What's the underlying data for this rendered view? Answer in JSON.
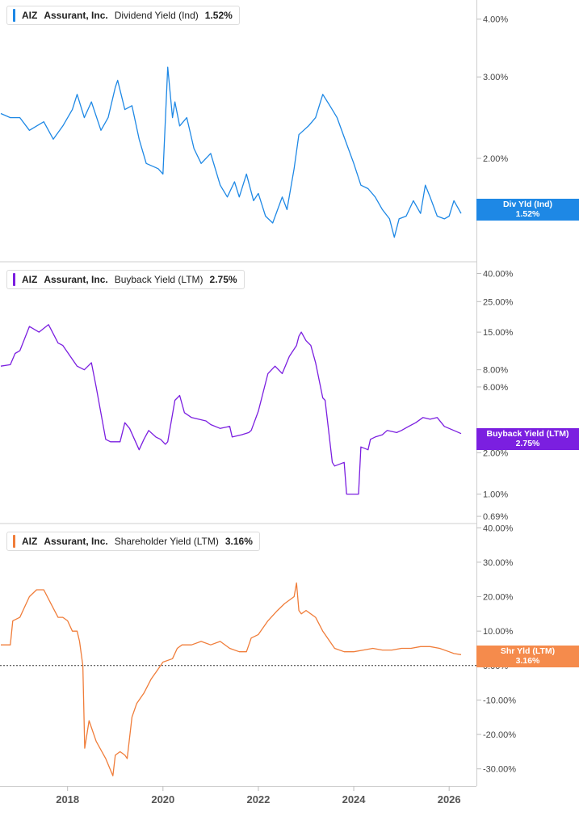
{
  "chart_data": [
    {
      "type": "line",
      "ticker": "AIZ",
      "company": "Assurant, Inc.",
      "metric": "Dividend Yield (Ind)",
      "latest": "1.52%",
      "flag_label": "Div Yld (Ind)",
      "flag_value": "1.52%",
      "color": "#1e88e5",
      "yscale": "log",
      "ylim": [
        1.2,
        4.4
      ],
      "ytick_labels": [
        "4.00%",
        "3.00%",
        "2.00%"
      ],
      "ytick_values": [
        4.0,
        3.0,
        2.0
      ],
      "series": [
        {
          "x": [
            2016.6,
            2016.8,
            2017.0,
            2017.2,
            2017.5,
            2017.7,
            2017.9,
            2018.1,
            2018.2,
            2018.35,
            2018.5,
            2018.7,
            2018.85,
            2019.0,
            2019.05,
            2019.2,
            2019.35,
            2019.5,
            2019.65,
            2019.8,
            2019.9,
            2020.0,
            2020.1,
            2020.2,
            2020.25,
            2020.35,
            2020.5,
            2020.65,
            2020.8,
            2021.0,
            2021.2,
            2021.35,
            2021.5,
            2021.6,
            2021.75,
            2021.9,
            2022.0,
            2022.15,
            2022.3,
            2022.5,
            2022.6,
            2022.75,
            2022.85,
            2022.95,
            2023.05,
            2023.2,
            2023.35,
            2023.5,
            2023.65,
            2023.85,
            2024.0,
            2024.15,
            2024.3,
            2024.45,
            2024.6,
            2024.75,
            2024.85,
            2024.95,
            2025.1,
            2025.25,
            2025.4,
            2025.5,
            2025.6,
            2025.75,
            2025.9,
            2026.0,
            2026.1,
            2026.25
          ],
          "y": [
            2.5,
            2.45,
            2.45,
            2.3,
            2.4,
            2.2,
            2.35,
            2.55,
            2.75,
            2.45,
            2.65,
            2.3,
            2.45,
            2.85,
            2.95,
            2.55,
            2.6,
            2.2,
            1.95,
            1.92,
            1.9,
            1.85,
            3.15,
            2.45,
            2.65,
            2.35,
            2.45,
            2.1,
            1.95,
            2.05,
            1.75,
            1.65,
            1.78,
            1.65,
            1.85,
            1.62,
            1.68,
            1.5,
            1.45,
            1.65,
            1.55,
            1.9,
            2.25,
            2.3,
            2.35,
            2.45,
            2.75,
            2.6,
            2.45,
            2.15,
            1.95,
            1.75,
            1.72,
            1.65,
            1.55,
            1.48,
            1.35,
            1.48,
            1.5,
            1.62,
            1.52,
            1.75,
            1.65,
            1.5,
            1.48,
            1.5,
            1.62,
            1.52
          ]
        }
      ]
    },
    {
      "type": "line",
      "ticker": "AIZ",
      "company": "Assurant, Inc.",
      "metric": "Buyback Yield (LTM)",
      "latest": "2.75%",
      "flag_label": "Buyback Yield (LTM)",
      "flag_value": "2.75%",
      "color": "#7b1fe0",
      "yscale": "log",
      "ylim": [
        0.62,
        48
      ],
      "ytick_labels": [
        "40.00%",
        "25.00%",
        "15.00%",
        "8.00%",
        "6.00%",
        "2.00%",
        "1.00%",
        "0.69%"
      ],
      "ytick_values": [
        40,
        25,
        15,
        8,
        6,
        2,
        1,
        0.69
      ],
      "series": [
        {
          "x": [
            2016.6,
            2016.8,
            2016.9,
            2017.0,
            2017.2,
            2017.4,
            2017.6,
            2017.8,
            2017.9,
            2018.2,
            2018.35,
            2018.5,
            2018.6,
            2018.8,
            2018.9,
            2019.1,
            2019.2,
            2019.3,
            2019.5,
            2019.6,
            2019.7,
            2019.85,
            2019.95,
            2020.05,
            2020.1,
            2020.25,
            2020.35,
            2020.45,
            2020.6,
            2020.75,
            2020.9,
            2021.0,
            2021.2,
            2021.4,
            2021.45,
            2021.65,
            2021.8,
            2021.85,
            2022.0,
            2022.2,
            2022.35,
            2022.5,
            2022.65,
            2022.8,
            2022.85,
            2022.9,
            2023.0,
            2023.1,
            2023.2,
            2023.35,
            2023.4,
            2023.55,
            2023.6,
            2023.8,
            2023.85,
            2024.1,
            2024.15,
            2024.3,
            2024.35,
            2024.45,
            2024.6,
            2024.7,
            2024.9,
            2025.0,
            2025.15,
            2025.3,
            2025.45,
            2025.6,
            2025.75,
            2025.9,
            2026.1,
            2026.25
          ],
          "y": [
            8.5,
            8.7,
            10.5,
            11,
            16.5,
            15,
            17,
            12.5,
            12,
            8.5,
            8,
            9,
            6,
            2.5,
            2.4,
            2.4,
            3.3,
            3,
            2.1,
            2.5,
            2.9,
            2.6,
            2.5,
            2.3,
            2.4,
            4.8,
            5.2,
            3.9,
            3.6,
            3.5,
            3.4,
            3.2,
            3.0,
            3.1,
            2.6,
            2.7,
            2.8,
            2.9,
            4.0,
            7.5,
            8.5,
            7.5,
            10,
            12,
            14,
            15,
            13,
            12,
            9,
            5,
            4.8,
            1.7,
            1.6,
            1.7,
            1.0,
            1.0,
            2.2,
            2.1,
            2.5,
            2.6,
            2.7,
            2.9,
            2.8,
            2.9,
            3.1,
            3.3,
            3.6,
            3.5,
            3.6,
            3.1,
            2.9,
            2.75
          ]
        }
      ]
    },
    {
      "type": "line",
      "ticker": "AIZ",
      "company": "Assurant, Inc.",
      "metric": "Shareholder Yield (LTM)",
      "latest": "3.16%",
      "flag_label": "Shr Yld (LTM)",
      "flag_value": "3.16%",
      "color": "#f07d3a",
      "yscale": "linear",
      "ylim": [
        -35,
        41
      ],
      "zero_line": true,
      "ytick_labels": [
        "40.00%",
        "30.00%",
        "20.00%",
        "10.00%",
        "0.00%",
        "-10.00%",
        "-20.00%",
        "-30.00%"
      ],
      "ytick_values": [
        40,
        30,
        20,
        10,
        0,
        -10,
        -20,
        -30
      ],
      "series": [
        {
          "x": [
            2016.6,
            2016.8,
            2016.85,
            2017.0,
            2017.2,
            2017.35,
            2017.5,
            2017.65,
            2017.8,
            2017.9,
            2018.0,
            2018.1,
            2018.2,
            2018.25,
            2018.32,
            2018.36,
            2018.45,
            2018.6,
            2018.8,
            2018.95,
            2019.0,
            2019.1,
            2019.2,
            2019.25,
            2019.35,
            2019.45,
            2019.6,
            2019.75,
            2019.9,
            2020.0,
            2020.2,
            2020.3,
            2020.4,
            2020.6,
            2020.8,
            2021.0,
            2021.2,
            2021.4,
            2021.6,
            2021.75,
            2021.85,
            2022.0,
            2022.2,
            2022.4,
            2022.55,
            2022.75,
            2022.8,
            2022.85,
            2022.9,
            2023.0,
            2023.2,
            2023.35,
            2023.4,
            2023.6,
            2023.8,
            2024.0,
            2024.2,
            2024.4,
            2024.6,
            2024.8,
            2025.0,
            2025.2,
            2025.4,
            2025.6,
            2025.8,
            2026.0,
            2026.1,
            2026.25
          ],
          "y": [
            6,
            6,
            13,
            14,
            20,
            22,
            22,
            18,
            14,
            14,
            13,
            10,
            10,
            7,
            0,
            -24,
            -16,
            -22,
            -27,
            -32,
            -26,
            -25,
            -26,
            -27,
            -15,
            -11,
            -8,
            -4,
            -1,
            1,
            2,
            5,
            6,
            6,
            7,
            6,
            7,
            5,
            4,
            4,
            8,
            9,
            13,
            16,
            18,
            20,
            24,
            16,
            15,
            16,
            14,
            10,
            9,
            5,
            4,
            4,
            4.5,
            5,
            4.5,
            4.5,
            5,
            5,
            5.5,
            5.5,
            5,
            4,
            3.5,
            3.16
          ]
        }
      ]
    }
  ],
  "x_axis": {
    "tick_labels": [
      "2018",
      "2020",
      "2022",
      "2024",
      "2026"
    ],
    "tick_values": [
      2018,
      2020,
      2022,
      2024,
      2026
    ]
  }
}
